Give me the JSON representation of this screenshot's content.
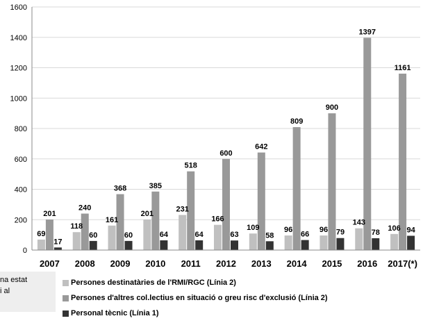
{
  "chart_data": {
    "type": "bar",
    "title": "",
    "xlabel": "",
    "ylabel": "",
    "ylim": [
      0,
      1600
    ],
    "yticks": [
      0,
      200,
      400,
      600,
      800,
      1000,
      1200,
      1400,
      1600
    ],
    "grid": true,
    "legend_position": "bottom",
    "categories": [
      "2007",
      "2008",
      "2009",
      "2010",
      "2011",
      "2012",
      "2013",
      "2014",
      "2015",
      "2016",
      "2017(*)"
    ],
    "series": [
      {
        "name": "Persones destinatàries de l'RMI/RGC (Línia 2)",
        "color": "#c0c0c0",
        "values": [
          69,
          118,
          161,
          201,
          231,
          166,
          109,
          96,
          96,
          143,
          106
        ]
      },
      {
        "name": "Persones d'altres col.lectius en situació o greu risc d'exclusió (Línia 2)",
        "color": "#999999",
        "values": [
          201,
          240,
          368,
          385,
          518,
          600,
          642,
          809,
          900,
          1397,
          1161
        ]
      },
      {
        "name": "Personal tècnic (Línia 1)",
        "color": "#333333",
        "values": [
          17,
          60,
          60,
          64,
          64,
          63,
          58,
          66,
          79,
          78,
          94
        ]
      }
    ]
  },
  "side_note": {
    "line1": "na estat",
    "line2": "i al"
  }
}
